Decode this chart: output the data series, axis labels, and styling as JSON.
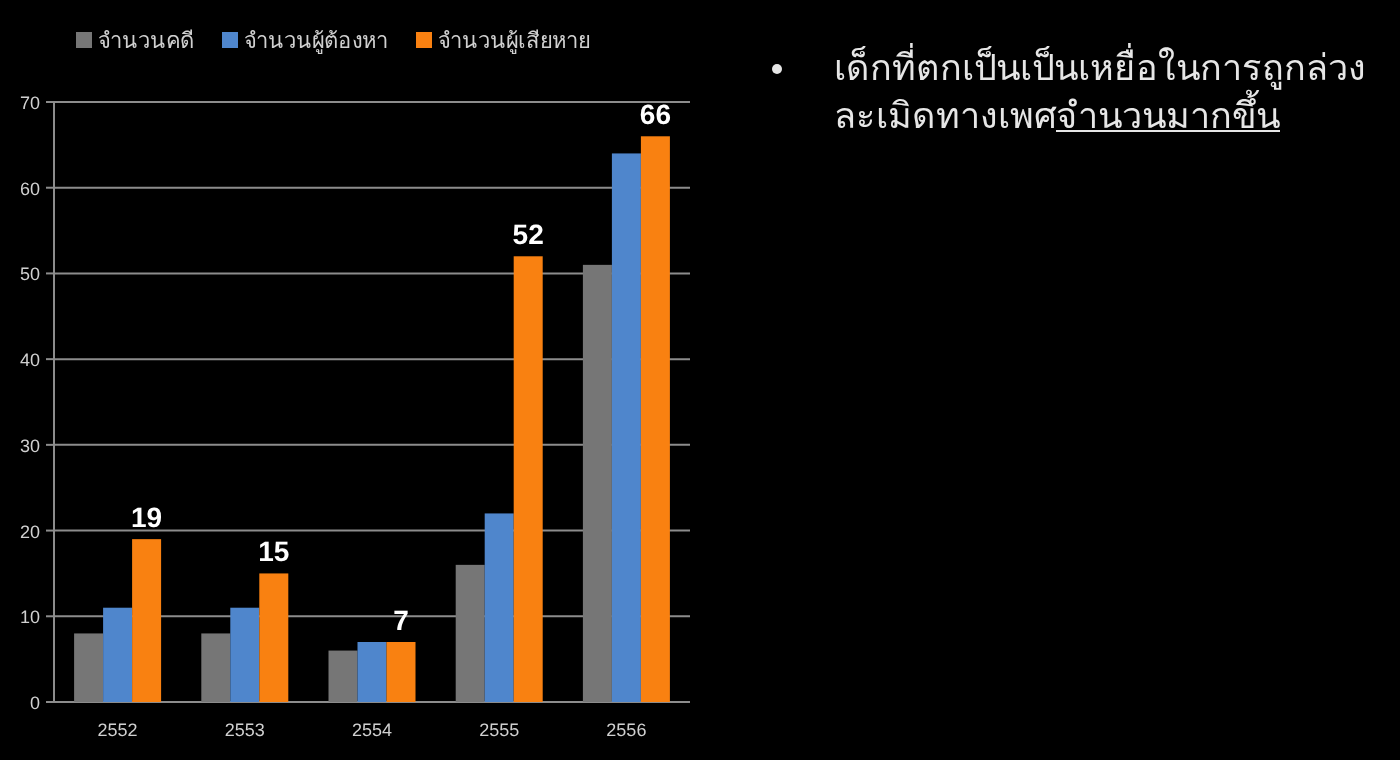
{
  "chart_data": [
    {
      "type": "bar",
      "categories": [
        "2552",
        "2553",
        "2554",
        "2555",
        "2556"
      ],
      "series": [
        {
          "name": "จำนวนคดี",
          "color": "#767676",
          "values": [
            8,
            8,
            6,
            16,
            51
          ]
        },
        {
          "name": "จำนวนผู้ต้องหา",
          "color": "#4f86cc",
          "values": [
            11,
            11,
            7,
            22,
            64
          ]
        },
        {
          "name": "จำนวนผู้เสียหาย",
          "color": "#f98111",
          "values": [
            19,
            15,
            7,
            52,
            66
          ],
          "value_labels": [
            "19",
            "15",
            "7",
            "52",
            "66"
          ]
        }
      ],
      "ylim": [
        0,
        70
      ],
      "yticks": [
        0,
        10,
        20,
        30,
        40,
        50,
        60,
        70
      ],
      "grid": "y",
      "legend": "top"
    },
    {
      "type": "other",
      "annotations": [
        "เด็กที่ตกเป็นเป็นเหยื่อในการถูกล่วงละเมิดทางเพศ",
        "จำนวนมากขึ้น"
      ]
    }
  ]
}
